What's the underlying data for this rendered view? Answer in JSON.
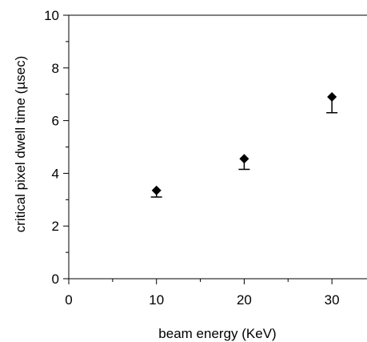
{
  "chart_data": {
    "type": "scatter",
    "title": "",
    "xlabel": "beam energy (KeV)",
    "ylabel": "critical pixel dwell time (µsec)",
    "xlim": [
      0,
      34
    ],
    "ylim": [
      0,
      10
    ],
    "x_ticks": [
      "0",
      "10",
      "20",
      "30"
    ],
    "y_ticks": [
      "0",
      "2",
      "4",
      "6",
      "8",
      "10"
    ],
    "grid": false,
    "series": [
      {
        "marker": "diamond",
        "color": "#000000",
        "points": [
          {
            "x": 10,
            "y": 3.35,
            "error_low": 3.1
          },
          {
            "x": 20,
            "y": 4.55,
            "error_low": 4.15
          },
          {
            "x": 30,
            "y": 6.9,
            "error_low": 6.3
          }
        ]
      }
    ]
  }
}
